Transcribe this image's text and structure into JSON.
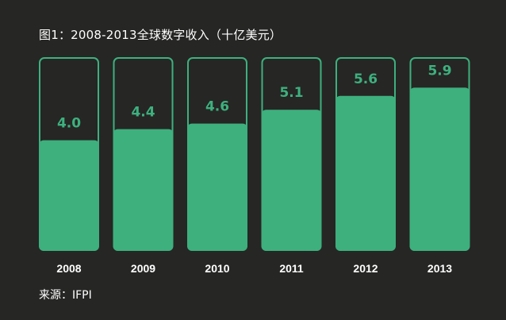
{
  "title": "图1：2008-2013全球数字收入（十亿美元）",
  "source": "来源：IFPI",
  "colors": {
    "background": "#262624",
    "bar": "#3db07e",
    "text": "#ffffff"
  },
  "chart_data": {
    "type": "bar",
    "title": "图1：2008-2013全球数字收入（十亿美元）",
    "categories": [
      "2008",
      "2009",
      "2010",
      "2011",
      "2012",
      "2013"
    ],
    "values": [
      4.0,
      4.4,
      4.6,
      5.1,
      5.6,
      5.9
    ],
    "value_labels": [
      "4.0",
      "4.4",
      "4.6",
      "5.1",
      "5.6",
      "5.9"
    ],
    "xlabel": "",
    "ylabel": "",
    "ylim": [
      0,
      7
    ],
    "grid": false,
    "legend": "none"
  }
}
